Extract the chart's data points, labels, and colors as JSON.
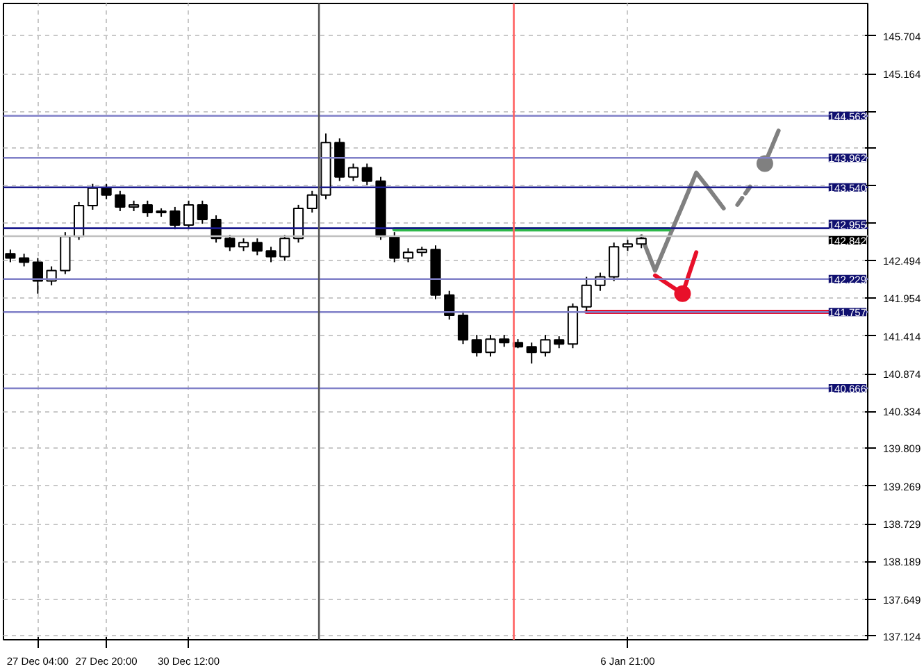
{
  "chart_data": {
    "type": "candlestick",
    "categories": [
      null,
      null,
      "27 Dec 04:00",
      null,
      null,
      null,
      null,
      "27 Dec 20:00",
      null,
      null,
      null,
      null,
      null,
      "30 Dec 12:00",
      null,
      null,
      null,
      null,
      null,
      null,
      null,
      null,
      null,
      null,
      null,
      null,
      null,
      null,
      null,
      null,
      null,
      null,
      null,
      null,
      null,
      null,
      null,
      null,
      null,
      null,
      null,
      null,
      null,
      null,
      null,
      "6 Jan 21:00",
      null,
      null,
      null,
      null,
      null,
      null,
      null,
      null,
      null,
      null,
      null,
      null,
      null,
      null,
      null,
      null,
      null
    ],
    "ohlc": [
      [
        142.59,
        142.65,
        142.47,
        142.53
      ],
      [
        142.53,
        142.59,
        142.41,
        142.47
      ],
      [
        142.47,
        142.53,
        142.02,
        142.2
      ],
      [
        142.2,
        142.41,
        142.14,
        142.35
      ],
      [
        142.35,
        142.9,
        142.3,
        142.84
      ],
      [
        142.84,
        143.33,
        142.79,
        143.28
      ],
      [
        143.28,
        143.59,
        143.22,
        143.53
      ],
      [
        143.53,
        143.59,
        143.37,
        143.43
      ],
      [
        143.43,
        143.49,
        143.2,
        143.26
      ],
      [
        143.26,
        143.35,
        143.2,
        143.29
      ],
      [
        143.29,
        143.35,
        143.12,
        143.18
      ],
      [
        143.18,
        143.24,
        143.12,
        143.2
      ],
      [
        143.2,
        143.26,
        142.94,
        143.0
      ],
      [
        143.0,
        143.35,
        142.94,
        143.29
      ],
      [
        143.29,
        143.35,
        143.02,
        143.08
      ],
      [
        143.08,
        143.14,
        142.75,
        142.81
      ],
      [
        142.81,
        142.86,
        142.63,
        142.69
      ],
      [
        142.69,
        142.81,
        142.63,
        142.75
      ],
      [
        142.75,
        142.81,
        142.57,
        142.63
      ],
      [
        142.63,
        142.69,
        142.47,
        142.55
      ],
      [
        142.55,
        142.86,
        142.49,
        142.81
      ],
      [
        142.81,
        143.29,
        142.75,
        143.24
      ],
      [
        143.24,
        143.49,
        143.18,
        143.43
      ],
      [
        143.43,
        144.31,
        143.37,
        144.18
      ],
      [
        144.18,
        144.24,
        143.63,
        143.69
      ],
      [
        143.69,
        143.88,
        143.63,
        143.82
      ],
      [
        143.82,
        143.88,
        143.57,
        143.63
      ],
      [
        143.63,
        143.69,
        142.79,
        142.84
      ],
      [
        142.84,
        142.9,
        142.47,
        142.53
      ],
      [
        142.53,
        142.67,
        142.47,
        142.61
      ],
      [
        142.61,
        142.69,
        142.55,
        142.65
      ],
      [
        142.65,
        142.71,
        141.94,
        142.0
      ],
      [
        142.0,
        142.06,
        141.65,
        141.71
      ],
      [
        141.71,
        141.77,
        141.3,
        141.36
      ],
      [
        141.36,
        141.43,
        141.12,
        141.18
      ],
      [
        141.18,
        141.43,
        141.12,
        141.37
      ],
      [
        141.37,
        141.43,
        141.26,
        141.32
      ],
      [
        141.32,
        141.37,
        141.24,
        141.26
      ],
      [
        141.26,
        141.32,
        141.02,
        141.18
      ],
      [
        141.18,
        141.43,
        141.12,
        141.36
      ],
      [
        141.36,
        141.41,
        141.24,
        141.3
      ],
      [
        141.3,
        141.88,
        141.24,
        141.83
      ],
      [
        141.83,
        142.26,
        141.77,
        142.14
      ],
      [
        142.14,
        142.32,
        142.06,
        142.26
      ],
      [
        142.26,
        142.75,
        142.2,
        142.69
      ],
      [
        142.69,
        142.79,
        142.63,
        142.73
      ],
      [
        142.73,
        142.86,
        142.67,
        142.81
      ],
      null,
      null,
      null,
      null,
      null,
      null,
      null,
      null,
      null,
      null,
      null,
      null,
      null,
      null,
      null,
      null
    ],
    "series": [
      {
        "type": "line",
        "color": "#808080",
        "values": [
          null,
          null,
          null,
          null,
          null,
          null,
          null,
          null,
          null,
          null,
          null,
          null,
          null,
          null,
          null,
          null,
          null,
          null,
          null,
          null,
          null,
          null,
          null,
          null,
          null,
          null,
          null,
          null,
          null,
          null,
          null,
          null,
          null,
          null,
          null,
          null,
          null,
          null,
          null,
          null,
          null,
          null,
          null,
          null,
          null,
          null,
          142.84,
          142.35,
          142.82,
          143.28,
          143.75,
          143.5,
          143.24,
          null,
          null,
          null,
          null,
          null,
          null,
          null,
          null,
          null,
          null
        ]
      },
      {
        "type": "line",
        "color": "#808080",
        "line_style": "dashed",
        "values": [
          null,
          null,
          null,
          null,
          null,
          null,
          null,
          null,
          null,
          null,
          null,
          null,
          null,
          null,
          null,
          null,
          null,
          null,
          null,
          null,
          null,
          null,
          null,
          null,
          null,
          null,
          null,
          null,
          null,
          null,
          null,
          null,
          null,
          null,
          null,
          null,
          null,
          null,
          null,
          null,
          null,
          null,
          null,
          null,
          null,
          null,
          null,
          null,
          null,
          null,
          null,
          null,
          null,
          143.29,
          143.57,
          null,
          null,
          null,
          null,
          null,
          null,
          null,
          null
        ]
      },
      {
        "type": "line",
        "color": "#808080",
        "values": [
          null,
          null,
          null,
          null,
          null,
          null,
          null,
          null,
          null,
          null,
          null,
          null,
          null,
          null,
          null,
          null,
          null,
          null,
          null,
          null,
          null,
          null,
          null,
          null,
          null,
          null,
          null,
          null,
          null,
          null,
          null,
          null,
          null,
          null,
          null,
          null,
          null,
          null,
          null,
          null,
          null,
          null,
          null,
          null,
          null,
          null,
          null,
          null,
          null,
          null,
          null,
          null,
          null,
          null,
          null,
          143.88,
          144.35,
          null,
          null,
          null,
          null,
          null,
          null
        ]
      },
      {
        "type": "scatter",
        "color": "#808080",
        "marker": "circle",
        "values": [
          null,
          null,
          null,
          null,
          null,
          null,
          null,
          null,
          null,
          null,
          null,
          null,
          null,
          null,
          null,
          null,
          null,
          null,
          null,
          null,
          null,
          null,
          null,
          null,
          null,
          null,
          null,
          null,
          null,
          null,
          null,
          null,
          null,
          null,
          null,
          null,
          null,
          null,
          null,
          null,
          null,
          null,
          null,
          null,
          null,
          null,
          null,
          null,
          null,
          null,
          null,
          null,
          null,
          null,
          null,
          143.88,
          null,
          null,
          null,
          null,
          null,
          null,
          null
        ]
      },
      {
        "type": "line",
        "color": "#e8102a",
        "values": [
          null,
          null,
          null,
          null,
          null,
          null,
          null,
          null,
          null,
          null,
          null,
          null,
          null,
          null,
          null,
          null,
          null,
          null,
          null,
          null,
          null,
          null,
          null,
          null,
          null,
          null,
          null,
          null,
          null,
          null,
          null,
          null,
          null,
          null,
          null,
          null,
          null,
          null,
          null,
          null,
          null,
          null,
          null,
          null,
          null,
          null,
          null,
          142.28,
          142.15,
          142.02,
          142.61,
          null,
          null,
          null,
          null,
          null,
          null,
          null,
          null,
          null,
          null,
          null,
          null
        ]
      },
      {
        "type": "scatter",
        "color": "#e8102a",
        "marker": "circle",
        "values": [
          null,
          null,
          null,
          null,
          null,
          null,
          null,
          null,
          null,
          null,
          null,
          null,
          null,
          null,
          null,
          null,
          null,
          null,
          null,
          null,
          null,
          null,
          null,
          null,
          null,
          null,
          null,
          null,
          null,
          null,
          null,
          null,
          null,
          null,
          null,
          null,
          null,
          null,
          null,
          null,
          null,
          null,
          null,
          null,
          null,
          null,
          null,
          null,
          null,
          142.02,
          null,
          null,
          null,
          null,
          null,
          null,
          null,
          null,
          null,
          null,
          null,
          null,
          null
        ]
      },
      {
        "type": "line",
        "color": "#2eb84a",
        "values": [
          null,
          null,
          null,
          null,
          null,
          null,
          null,
          null,
          null,
          null,
          null,
          null,
          null,
          null,
          null,
          null,
          null,
          null,
          null,
          null,
          null,
          null,
          null,
          null,
          null,
          null,
          null,
          null,
          142.94,
          142.94,
          142.94,
          142.94,
          142.94,
          142.94,
          142.94,
          142.94,
          142.94,
          142.94,
          142.94,
          142.94,
          142.94,
          142.94,
          142.94,
          142.94,
          142.94,
          142.94,
          142.94,
          142.94,
          142.94,
          null,
          null,
          null,
          null,
          null,
          null,
          null,
          null,
          null,
          null,
          null,
          null,
          null,
          null
        ]
      },
      {
        "type": "line",
        "color": "#e8102a",
        "values": [
          null,
          null,
          null,
          null,
          null,
          null,
          null,
          null,
          null,
          null,
          null,
          null,
          null,
          null,
          null,
          null,
          null,
          null,
          null,
          null,
          null,
          null,
          null,
          null,
          null,
          null,
          null,
          null,
          null,
          null,
          null,
          null,
          null,
          null,
          null,
          null,
          null,
          null,
          null,
          null,
          null,
          null,
          141.76,
          141.76,
          141.76,
          141.76,
          141.76,
          141.76,
          141.76,
          141.76,
          141.76,
          141.76,
          141.76,
          141.76,
          141.76,
          141.76,
          141.76,
          141.76,
          141.76,
          141.76,
          141.76,
          141.76,
          null
        ]
      }
    ],
    "ylim": [
      137.07,
      146.17
    ],
    "yticks": [
      145.704,
      145.164,
      {
        "value": 144.624,
        "label": null
      },
      {
        "value": 144.099,
        "label": null
      },
      {
        "value": 143.559,
        "label": null
      },
      {
        "value": 143.034,
        "label": null
      },
      142.494,
      141.954,
      141.414,
      140.874,
      140.334,
      139.809,
      139.269,
      138.729,
      138.189,
      137.649,
      137.124
    ],
    "ref_lines": [
      {
        "axis": "y",
        "value": 144.563,
        "label": "144.563",
        "color": "#8080c8"
      },
      {
        "axis": "y",
        "value": 143.962,
        "label": "143.962",
        "color": "#8080c8"
      },
      {
        "axis": "y",
        "value": 143.54,
        "label": "143.540",
        "color": "#1a1a8c"
      },
      {
        "axis": "y",
        "value": 142.955,
        "label": "142.955",
        "color": "#1a1a8c"
      },
      {
        "axis": "y",
        "value": 142.842,
        "label": "142.842",
        "color": "#c0c0c0"
      },
      {
        "axis": "y",
        "value": 142.229,
        "label": "142.229",
        "color": "#8080c8"
      },
      {
        "axis": "y",
        "value": 141.757,
        "label": "141.757",
        "color": "#8080c8"
      },
      {
        "axis": "y",
        "value": 140.666,
        "label": "140.666",
        "color": "#8080c8"
      }
    ],
    "grid": true
  }
}
